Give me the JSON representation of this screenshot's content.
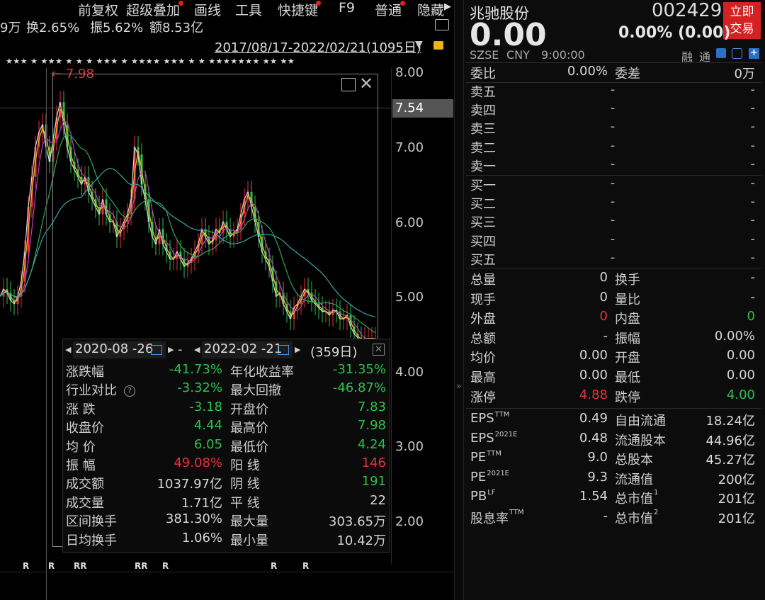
{
  "toolbar": {
    "items": [
      "前复权",
      "超级叠加",
      "画线",
      "工具",
      "快捷键",
      "F9",
      "普通",
      "隐藏"
    ]
  },
  "stats_line": {
    "vol": "9万",
    "turnover": "换2.65%",
    "amplitude": "振5.62%",
    "amount": "额8.53亿"
  },
  "date_range": "2017/08/17-2022/02/21(1095日)",
  "stars": "★★★   ★  ★★★   ★   ★   ★   ★★★   ★   ★★★★   ★★★   ★   ★   ★★★★★★★   ★★   ★★",
  "y_axis": {
    "ticks": [
      "8.00",
      "7.00",
      "6.00",
      "5.00",
      "4.00",
      "3.00",
      "2.00"
    ],
    "current": "7.54"
  },
  "chart_data": {
    "type": "line",
    "title": "",
    "ylim": [
      1.8,
      8.2
    ],
    "x": [
      0,
      5,
      10,
      15,
      20,
      25,
      30,
      35,
      40,
      45,
      50,
      55,
      60,
      65,
      70,
      75,
      80,
      85,
      90,
      95,
      100,
      105,
      110,
      115,
      120,
      125,
      130,
      135,
      140,
      145,
      150,
      155,
      160,
      165,
      170,
      175,
      180,
      185,
      190,
      195,
      200,
      205,
      210,
      215,
      220,
      225,
      230,
      235,
      240,
      245,
      250,
      255,
      260,
      265,
      270,
      275,
      280,
      285,
      290,
      295,
      300,
      305,
      310,
      315,
      320,
      325,
      330,
      335,
      340,
      345,
      350,
      355,
      360,
      365,
      370,
      375,
      380,
      385,
      390,
      395,
      400,
      405,
      410,
      415,
      420,
      425,
      430,
      435,
      440,
      445,
      450,
      455,
      460,
      465,
      470,
      475,
      480,
      485,
      490,
      495,
      500,
      505,
      510,
      515,
      520,
      525,
      530
    ],
    "series": [
      {
        "values": [
          5.0,
          5.1,
          5.05,
          4.95,
          4.9,
          5.0,
          5.2,
          5.6,
          6.2,
          6.6,
          7.0,
          7.2,
          7.3,
          7.0,
          6.8,
          7.1,
          7.4,
          7.6,
          7.3,
          7.0,
          6.8,
          6.7,
          6.6,
          6.5,
          6.6,
          6.4,
          6.3,
          6.2,
          6.1,
          6.3,
          6.1,
          6.0,
          6.0,
          5.8,
          5.9,
          6.0,
          6.1,
          6.3,
          7.0,
          6.9,
          6.5,
          6.3,
          6.0,
          5.8,
          5.7,
          5.9,
          5.7,
          5.6,
          5.5,
          5.5,
          5.6,
          5.5,
          5.4,
          5.45,
          5.5,
          5.6,
          5.7,
          5.9,
          5.8,
          5.7,
          5.75,
          5.9,
          5.85,
          6.0,
          5.9,
          5.8,
          5.85,
          5.9,
          6.1,
          6.3,
          6.4,
          6.2,
          6.0,
          5.8,
          5.6,
          5.5,
          5.4,
          5.2,
          5.0,
          5.05,
          4.9,
          4.8,
          4.7,
          4.85,
          4.9,
          5.0,
          5.1,
          5.05,
          4.95,
          4.9,
          4.85,
          4.8,
          4.8,
          4.75,
          4.82,
          4.8,
          4.7,
          4.7,
          4.75,
          4.6,
          4.5,
          4.45,
          4.4,
          4.44,
          4.44,
          4.44,
          4.44
        ]
      }
    ],
    "ref_high": "7.98"
  },
  "r_markers": [
    "R",
    "R",
    "RR",
    "RR",
    "R",
    "R",
    "R"
  ],
  "popup": {
    "start": "2020-08 -26",
    "end": "2022-02 -21",
    "days": "(359日)",
    "rows": [
      {
        "l1": "涨跌幅",
        "v1": "-41.73%",
        "c1": "green",
        "l2": "年化收益率",
        "v2": "-31.35%",
        "c2": "green"
      },
      {
        "l1": "行业对比",
        "v1": "-3.32%",
        "c1": "green",
        "l2": "最大回撤",
        "v2": "-46.87%",
        "c2": "green"
      },
      {
        "l1": "涨  跌",
        "v1": "-3.18",
        "c1": "green",
        "l2": "开盘价",
        "v2": "7.83",
        "c2": "green"
      },
      {
        "l1": "收盘价",
        "v1": "4.44",
        "c1": "green",
        "l2": "最高价",
        "v2": "7.98",
        "c2": "green"
      },
      {
        "l1": "均  价",
        "v1": "6.05",
        "c1": "green",
        "l2": "最低价",
        "v2": "4.24",
        "c2": "green"
      },
      {
        "l1": "振  幅",
        "v1": "49.08%",
        "c1": "red",
        "l2": "阳  线",
        "v2": "146",
        "c2": "red"
      },
      {
        "l1": "成交额",
        "v1": "1037.97亿",
        "c1": "w",
        "l2": "阴  线",
        "v2": "191",
        "c2": "green"
      },
      {
        "l1": "成交量",
        "v1": "1.71亿",
        "c1": "w",
        "l2": "平  线",
        "v2": "22",
        "c2": "w"
      },
      {
        "l1": "区间换手",
        "v1": "381.30%",
        "c1": "w",
        "l2": "最大量",
        "v2": "303.65万",
        "c2": "w"
      },
      {
        "l1": "日均换手",
        "v1": "1.06%",
        "c1": "w",
        "l2": "最小量",
        "v2": "10.42万",
        "c2": "w"
      }
    ]
  },
  "stock": {
    "name": "兆驰股份",
    "code": "002429",
    "price": "0.00",
    "change": "0.00% (0.00)",
    "exchange": "SZSE",
    "currency": "CNY",
    "time": "9:00:00",
    "trade_btn": [
      "立即",
      "交易"
    ],
    "margin": "融",
    "tong": "通"
  },
  "weibi": {
    "l1": "委比",
    "v1": "0.00%",
    "l2": "委差",
    "v2": "0万"
  },
  "order_book": [
    {
      "label": "卖五",
      "price": "-",
      "vol": "-"
    },
    {
      "label": "卖四",
      "price": "-",
      "vol": "-"
    },
    {
      "label": "卖三",
      "price": "-",
      "vol": "-"
    },
    {
      "label": "卖二",
      "price": "-",
      "vol": "-"
    },
    {
      "label": "卖一",
      "price": "-",
      "vol": "-"
    },
    {
      "label": "买一",
      "price": "-",
      "vol": "-"
    },
    {
      "label": "买二",
      "price": "-",
      "vol": "-"
    },
    {
      "label": "买三",
      "price": "-",
      "vol": "-"
    },
    {
      "label": "买四",
      "price": "-",
      "vol": "-"
    },
    {
      "label": "买五",
      "price": "-",
      "vol": "-"
    }
  ],
  "quote": [
    {
      "l1": "总量",
      "v1": "0",
      "c1": "w",
      "l2": "换手",
      "v2": "-",
      "c2": "w"
    },
    {
      "l1": "现手",
      "v1": "0",
      "c1": "w",
      "l2": "量比",
      "v2": "-",
      "c2": "w"
    },
    {
      "l1": "外盘",
      "v1": "0",
      "c1": "red",
      "l2": "内盘",
      "v2": "0",
      "c2": "green"
    },
    {
      "l1": "总额",
      "v1": "-",
      "c1": "w",
      "l2": "振幅",
      "v2": "0.00%",
      "c2": "w"
    },
    {
      "l1": "均价",
      "v1": "0.00",
      "c1": "w",
      "l2": "开盘",
      "v2": "0.00",
      "c2": "w"
    },
    {
      "l1": "最高",
      "v1": "0.00",
      "c1": "w",
      "l2": "最低",
      "v2": "0.00",
      "c2": "w"
    },
    {
      "l1": "涨停",
      "v1": "4.88",
      "c1": "red",
      "l2": "跌停",
      "v2": "4.00",
      "c2": "green"
    }
  ],
  "fund": [
    {
      "l1": "EPS",
      "s1": "TTM",
      "v1": "0.49",
      "l2": "自由流通",
      "v2": "18.24亿"
    },
    {
      "l1": "EPS",
      "s1": "2021E",
      "v1": "0.48",
      "l2": "流通股本",
      "v2": "44.96亿"
    },
    {
      "l1": "PE",
      "s1": "TTM",
      "v1": "9.0",
      "l2": "总股本",
      "v2": "45.27亿"
    },
    {
      "l1": "PE",
      "s1": "2021E",
      "v1": "9.3",
      "l2": "流通值",
      "v2": "200亿"
    },
    {
      "l1": "PB",
      "s1": "LF",
      "v1": "1.54",
      "l2": "总市值",
      "s2": "1",
      "v2": "201亿"
    },
    {
      "l1": "股息率",
      "s1": "TTM",
      "v1": "-",
      "l2": "总市值",
      "s2": "2",
      "v2": "201亿"
    }
  ]
}
